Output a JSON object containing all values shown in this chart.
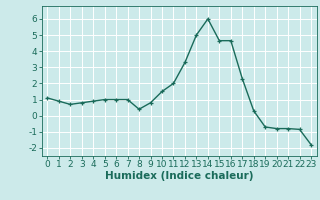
{
  "x": [
    0,
    1,
    2,
    3,
    4,
    5,
    6,
    7,
    8,
    9,
    10,
    11,
    12,
    13,
    14,
    15,
    16,
    17,
    18,
    19,
    20,
    21,
    22,
    23
  ],
  "y": [
    1.1,
    0.9,
    0.7,
    0.8,
    0.9,
    1.0,
    1.0,
    1.0,
    0.4,
    0.8,
    1.5,
    2.0,
    3.3,
    5.0,
    6.0,
    4.65,
    4.65,
    2.3,
    0.3,
    -0.7,
    -0.8,
    -0.8,
    -0.85,
    -1.8
  ],
  "xlabel": "Humidex (Indice chaleur)",
  "ylim": [
    -2.5,
    6.8
  ],
  "xlim": [
    -0.5,
    23.5
  ],
  "yticks": [
    -2,
    -1,
    0,
    1,
    2,
    3,
    4,
    5,
    6
  ],
  "xticks": [
    0,
    1,
    2,
    3,
    4,
    5,
    6,
    7,
    8,
    9,
    10,
    11,
    12,
    13,
    14,
    15,
    16,
    17,
    18,
    19,
    20,
    21,
    22,
    23
  ],
  "line_color": "#1a6b5a",
  "marker": "+",
  "bg_color": "#cceaea",
  "grid_color": "#ffffff",
  "xlabel_fontsize": 7.5,
  "tick_fontsize": 6.5
}
